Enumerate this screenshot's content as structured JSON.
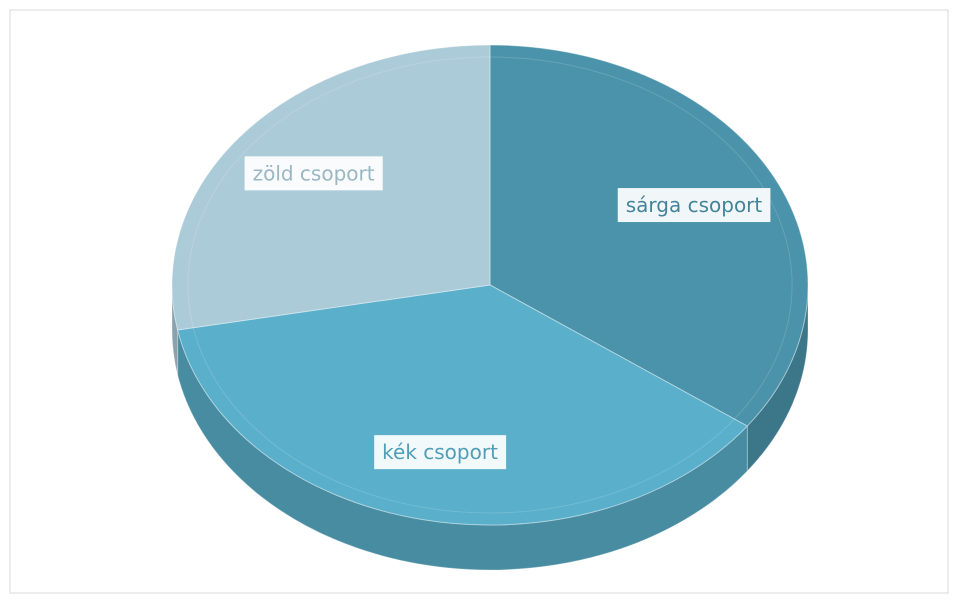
{
  "chart_data": {
    "type": "pie3d",
    "categories": [
      "sárga csoport",
      "kék csoport",
      "zöld csoport"
    ],
    "values": [
      35,
      37,
      28
    ],
    "colors": [
      "#4a93ab",
      "#5aafcb",
      "#abcbd9"
    ]
  }
}
